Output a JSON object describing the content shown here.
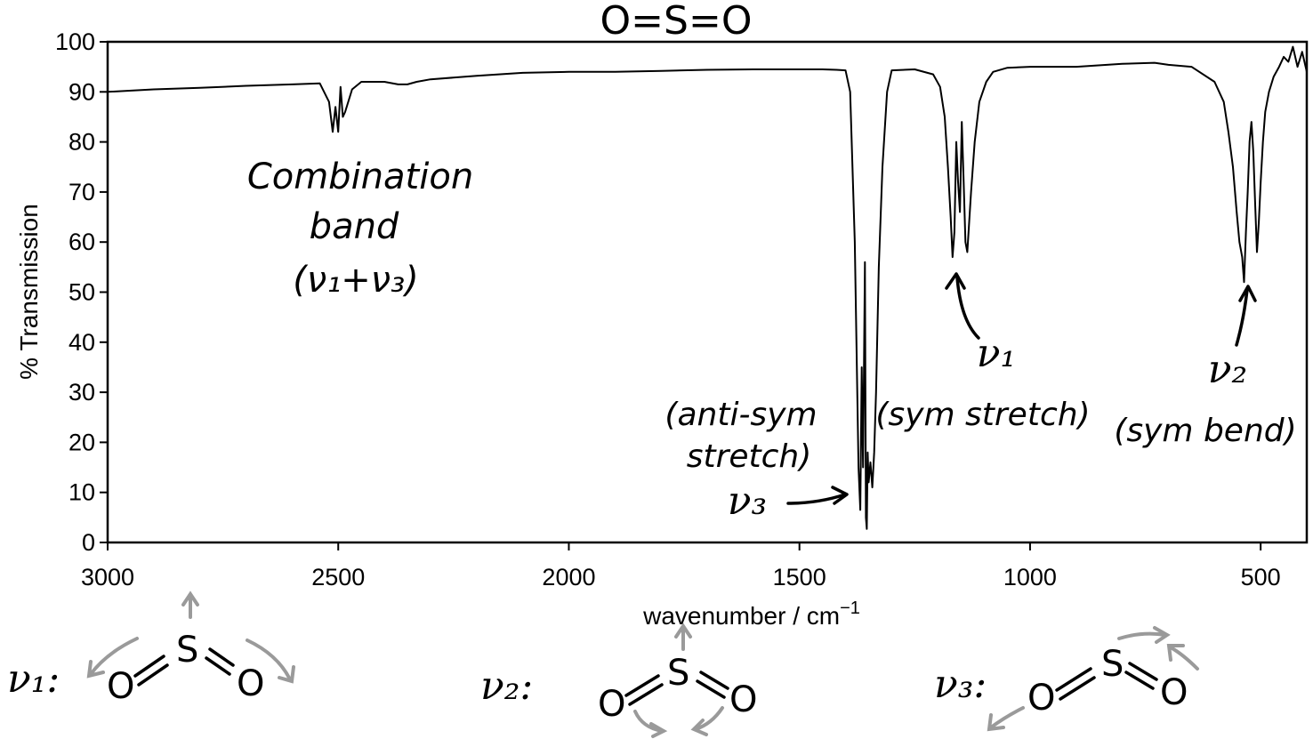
{
  "chart_data": {
    "type": "line",
    "title": "O=S=O",
    "xlabel": "wavenumber / cm",
    "xlabel_superscript": "−1",
    "ylabel": "% Transmission",
    "xlim": [
      3000,
      400
    ],
    "x_reversed": true,
    "ylim": [
      0,
      100
    ],
    "x_ticks": [
      3000,
      2500,
      2000,
      1500,
      1000,
      500
    ],
    "y_ticks": [
      0,
      10,
      20,
      30,
      40,
      50,
      60,
      70,
      80,
      90,
      100
    ],
    "grid": false,
    "series": [
      {
        "x": [
          3000,
          2900,
          2800,
          2700,
          2600,
          2540,
          2520,
          2512,
          2506,
          2500,
          2495,
          2490,
          2485,
          2470,
          2450,
          2400,
          2370,
          2350,
          2330,
          2300,
          2200,
          2100,
          2000,
          1900,
          1800,
          1700,
          1600,
          1500,
          1450,
          1420,
          1400,
          1390,
          1380,
          1372,
          1368,
          1365,
          1362,
          1358,
          1356,
          1354,
          1352,
          1350,
          1346,
          1342,
          1338,
          1334,
          1328,
          1320,
          1310,
          1300,
          1250,
          1210,
          1195,
          1185,
          1178,
          1172,
          1168,
          1164,
          1160,
          1156,
          1152,
          1148,
          1144,
          1140,
          1136,
          1132,
          1128,
          1120,
          1110,
          1095,
          1080,
          1050,
          1000,
          900,
          800,
          730,
          700,
          650,
          600,
          580,
          570,
          560,
          552,
          546,
          540,
          536,
          532,
          528,
          524,
          520,
          516,
          512,
          508,
          504,
          500,
          495,
          490,
          482,
          472,
          460,
          450,
          440,
          430,
          420,
          410,
          400
        ],
        "y": [
          90,
          90.5,
          90.8,
          91.2,
          91.5,
          91.7,
          88,
          82,
          87,
          82,
          91,
          85,
          86,
          90.5,
          92,
          92,
          91.5,
          91.5,
          92,
          92.5,
          93.2,
          93.8,
          94,
          94,
          94.2,
          94.4,
          94.5,
          94.5,
          94.5,
          94.4,
          94.3,
          90,
          60,
          15,
          6.5,
          35,
          15,
          56,
          5,
          2.7,
          18,
          12,
          16,
          11,
          18,
          30,
          55,
          75,
          90,
          94.3,
          94.5,
          93.5,
          91,
          85,
          75,
          65,
          57,
          62,
          80,
          72,
          66,
          84,
          72,
          60,
          58,
          64,
          70,
          80,
          88,
          92,
          94,
          94.8,
          95,
          95,
          95.6,
          95.8,
          95.4,
          95,
          92,
          88,
          82,
          75,
          66,
          60,
          57,
          52,
          62,
          70,
          80,
          84,
          78,
          68,
          58,
          64,
          72,
          80,
          86,
          90,
          93,
          95,
          97,
          96,
          99,
          95,
          98,
          94
        ]
      }
    ],
    "annotations": [
      {
        "text": "O=S=O"
      },
      {
        "text": "Combination"
      },
      {
        "text": "band"
      },
      {
        "text": "(ν₁+ν₃)"
      },
      {
        "text": "(anti-sym"
      },
      {
        "text": "stretch)"
      },
      {
        "text": "ν₃"
      },
      {
        "text": "ν₁"
      },
      {
        "text": "(sym stretch)"
      },
      {
        "text": "ν₂"
      },
      {
        "text": "(sym bend)"
      }
    ]
  },
  "modes": {
    "v1": {
      "label": "ν₁:",
      "sulfur": "S",
      "oxygen_left": "O",
      "oxygen_right": "O"
    },
    "v2": {
      "label": "ν₂:",
      "sulfur": "S",
      "oxygen_left": "O",
      "oxygen_right": "O"
    },
    "v3": {
      "label": "ν₃:",
      "sulfur": "S",
      "oxygen_left": "O",
      "oxygen_right": "O"
    }
  },
  "colors": {
    "trace": "#000000",
    "mode_arrows": "#9a9a9a"
  }
}
